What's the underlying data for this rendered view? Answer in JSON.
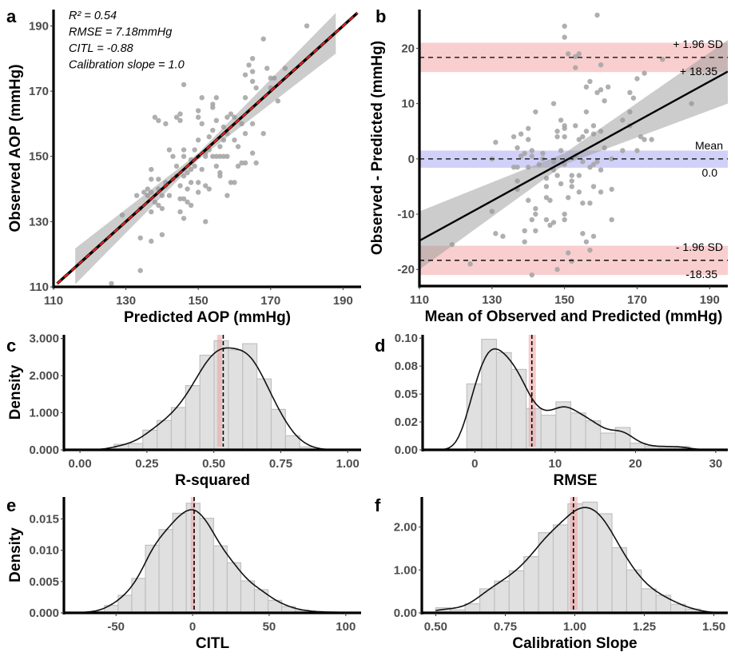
{
  "chart_data": [
    {
      "panel": "a",
      "type": "scatter",
      "xlabel": "Predicted AOP (mmHg)",
      "ylabel": "Observed AOP (mmHg)",
      "xlim": [
        110,
        195
      ],
      "ylim": [
        110,
        195
      ],
      "xticks": [
        110,
        130,
        150,
        170,
        190
      ],
      "yticks": [
        110,
        130,
        150,
        170,
        190
      ],
      "annotations": [
        "R² = 0.54",
        "RMSE = 7.18mmHg",
        "CITL = -0.88",
        "Calibration slope = 1.0"
      ],
      "fit_line": [
        [
          111,
          111
        ],
        [
          194,
          194
        ]
      ],
      "ci_band": {
        "x": [
          116,
          150,
          188
        ],
        "lower": [
          110.8,
          149,
          181.5
        ],
        "upper": [
          121.8,
          151,
          194
        ]
      },
      "points": [
        [
          126,
          111
        ],
        [
          134,
          115
        ],
        [
          134,
          125
        ],
        [
          137,
          124
        ],
        [
          140,
          126
        ],
        [
          129,
          132
        ],
        [
          133,
          138
        ],
        [
          134,
          134
        ],
        [
          136,
          140
        ],
        [
          136,
          138
        ],
        [
          137,
          143
        ],
        [
          137,
          146
        ],
        [
          137,
          133
        ],
        [
          138,
          162
        ],
        [
          139,
          161
        ],
        [
          141,
          160
        ],
        [
          138,
          136
        ],
        [
          139,
          135
        ],
        [
          140,
          134
        ],
        [
          139,
          143
        ],
        [
          141,
          142
        ],
        [
          140,
          138
        ],
        [
          142,
          138
        ],
        [
          142,
          152
        ],
        [
          144,
          162
        ],
        [
          145,
          163
        ],
        [
          145,
          161
        ],
        [
          143,
          150
        ],
        [
          144,
          144
        ],
        [
          145,
          141
        ],
        [
          145,
          137
        ],
        [
          146,
          150
        ],
        [
          146,
          152
        ],
        [
          146,
          172
        ],
        [
          145,
          133
        ],
        [
          146,
          131
        ],
        [
          146,
          137
        ],
        [
          147,
          136
        ],
        [
          148,
          135
        ],
        [
          147,
          140
        ],
        [
          147,
          145
        ],
        [
          148,
          142
        ],
        [
          148,
          146
        ],
        [
          149,
          152
        ],
        [
          149,
          147
        ],
        [
          150,
          150
        ],
        [
          150,
          155
        ],
        [
          150,
          164
        ],
        [
          150,
          162
        ],
        [
          150,
          139
        ],
        [
          150,
          142
        ],
        [
          151,
          168
        ],
        [
          151,
          146
        ],
        [
          151,
          160
        ],
        [
          152,
          150
        ],
        [
          152,
          141
        ],
        [
          152,
          130
        ],
        [
          153,
          140
        ],
        [
          153,
          156
        ],
        [
          153,
          152
        ],
        [
          154,
          158
        ],
        [
          154,
          166
        ],
        [
          154,
          165
        ],
        [
          154,
          150
        ],
        [
          155,
          147
        ],
        [
          155,
          150
        ],
        [
          155,
          168
        ],
        [
          155,
          161
        ],
        [
          156,
          150
        ],
        [
          156,
          145
        ],
        [
          156,
          144
        ],
        [
          156,
          153
        ],
        [
          157,
          150
        ],
        [
          157,
          155
        ],
        [
          157,
          159
        ],
        [
          158,
          150
        ],
        [
          158,
          138
        ],
        [
          158,
          162
        ],
        [
          159,
          163
        ],
        [
          160,
          155
        ],
        [
          160,
          162
        ],
        [
          161,
          153
        ],
        [
          161,
          147
        ],
        [
          159,
          142
        ],
        [
          160,
          142
        ],
        [
          162,
          148
        ],
        [
          163,
          148
        ],
        [
          163,
          157
        ],
        [
          163,
          168
        ],
        [
          163,
          175
        ],
        [
          164,
          178
        ],
        [
          165,
          180
        ],
        [
          165,
          176
        ],
        [
          165,
          173
        ],
        [
          166,
          171
        ],
        [
          165,
          151
        ],
        [
          165,
          160
        ],
        [
          166,
          148
        ],
        [
          168,
          157
        ],
        [
          168,
          186
        ],
        [
          169,
          177
        ],
        [
          170,
          174
        ],
        [
          171,
          174
        ],
        [
          170,
          171
        ],
        [
          172,
          167
        ],
        [
          174,
          177
        ],
        [
          180,
          190
        ],
        [
          152,
          151
        ],
        [
          148,
          149
        ],
        [
          146,
          144
        ],
        [
          144,
          147
        ],
        [
          143,
          143
        ],
        [
          141,
          141
        ],
        [
          139,
          140
        ],
        [
          135,
          139
        ],
        [
          137,
          139
        ],
        [
          162,
          160
        ],
        [
          158,
          157
        ]
      ]
    },
    {
      "panel": "b",
      "type": "scatter",
      "xlabel": "Mean of Observed and Predicted (mmHg)",
      "ylabel": "Observed - Predicted (mmHg)",
      "xlim": [
        110,
        195
      ],
      "ylim": [
        -23,
        27
      ],
      "xticks": [
        110,
        130,
        150,
        170,
        190
      ],
      "yticks": [
        -20,
        -10,
        0,
        10,
        20
      ],
      "limits": [
        {
          "name": "upper",
          "value": 18.35,
          "band": [
            15.7,
            21.0
          ],
          "label_top": "+ 1.96 SD",
          "label_bottom": "+ 18.35",
          "color": "#f4a6a6"
        },
        {
          "name": "mean",
          "value": 0.0,
          "band": [
            -1.6,
            1.5
          ],
          "label_top": "Mean",
          "label_bottom": "0.0",
          "color": "#a9a9f2"
        },
        {
          "name": "lower",
          "value": -18.35,
          "band": [
            -21.0,
            -15.7
          ],
          "label_top": "- 1.96 SD",
          "label_bottom": "-18.35",
          "color": "#f4a6a6"
        }
      ],
      "fit_line": [
        [
          110,
          -14.8
        ],
        [
          195,
          15.8
        ]
      ],
      "ci_band": {
        "x": [
          110,
          150,
          195
        ],
        "lower": [
          -20,
          -1,
          10
        ],
        "upper": [
          -9.5,
          1,
          21.5
        ]
      },
      "points": [
        [
          119,
          -15.5
        ],
        [
          124,
          -19
        ],
        [
          130,
          -9.5
        ],
        [
          130,
          0
        ],
        [
          131,
          3
        ],
        [
          131,
          -13.5
        ],
        [
          133,
          -14
        ],
        [
          136,
          -1.5
        ],
        [
          136,
          4
        ],
        [
          137,
          2
        ],
        [
          137,
          -4
        ],
        [
          137,
          -5.5
        ],
        [
          137,
          -1.5
        ],
        [
          138,
          4.5
        ],
        [
          138,
          0.5
        ],
        [
          139,
          1
        ],
        [
          139,
          -15
        ],
        [
          139,
          -13
        ],
        [
          140,
          -7.5
        ],
        [
          140,
          -1.5
        ],
        [
          140,
          3.5
        ],
        [
          140,
          5.5
        ],
        [
          141,
          0.5
        ],
        [
          141,
          1.5
        ],
        [
          141,
          -21
        ],
        [
          141,
          -11
        ],
        [
          142,
          -13
        ],
        [
          142,
          -10
        ],
        [
          142,
          8.5
        ],
        [
          142,
          -9
        ],
        [
          143,
          -1
        ],
        [
          144,
          1
        ],
        [
          144,
          0
        ],
        [
          145,
          -7
        ],
        [
          145,
          -3.5
        ],
        [
          145,
          -5
        ],
        [
          145,
          -11
        ],
        [
          146,
          -7.5
        ],
        [
          146,
          -12
        ],
        [
          147,
          -11.5
        ],
        [
          147,
          10
        ],
        [
          147,
          -2
        ],
        [
          148,
          5
        ],
        [
          148,
          4
        ],
        [
          148,
          -3
        ],
        [
          148,
          -20
        ],
        [
          149,
          -4.5
        ],
        [
          149,
          1.5
        ],
        [
          149,
          7
        ],
        [
          150,
          6
        ],
        [
          150,
          5.5
        ],
        [
          150,
          24
        ],
        [
          150,
          22
        ],
        [
          150,
          4
        ],
        [
          150,
          -11
        ],
        [
          150,
          -10
        ],
        [
          151,
          -7
        ],
        [
          151,
          19
        ],
        [
          151,
          -17
        ],
        [
          152,
          -18.5
        ],
        [
          152,
          -3
        ],
        [
          152,
          -4
        ],
        [
          152,
          -5
        ],
        [
          153,
          6
        ],
        [
          153,
          0.5
        ],
        [
          153,
          16.5
        ],
        [
          153,
          18.5
        ],
        [
          154,
          19
        ],
        [
          154,
          -6
        ],
        [
          154,
          -3
        ],
        [
          154,
          3.5
        ],
        [
          155,
          -8
        ],
        [
          155,
          -13.5
        ],
        [
          155,
          4
        ],
        [
          156,
          -15
        ],
        [
          156,
          5
        ],
        [
          156,
          8.5
        ],
        [
          156,
          13
        ],
        [
          157,
          -1.5
        ],
        [
          157,
          14
        ],
        [
          157,
          -16.5
        ],
        [
          157,
          -8
        ],
        [
          158,
          -14
        ],
        [
          158,
          6
        ],
        [
          158,
          4.5
        ],
        [
          158,
          -5
        ],
        [
          158,
          -1
        ],
        [
          159,
          26
        ],
        [
          159,
          12
        ],
        [
          160,
          12.5
        ],
        [
          160,
          17
        ],
        [
          160,
          5
        ],
        [
          160,
          -2
        ],
        [
          160,
          -6
        ],
        [
          161,
          10.5
        ],
        [
          161,
          2
        ],
        [
          162,
          13
        ],
        [
          163,
          0
        ],
        [
          163,
          -5.5
        ],
        [
          163,
          -11
        ],
        [
          166,
          7
        ],
        [
          166,
          1.5
        ],
        [
          168,
          12
        ],
        [
          168,
          8.5
        ],
        [
          168,
          6
        ],
        [
          169,
          11
        ],
        [
          170,
          14.5
        ],
        [
          170,
          1.5
        ],
        [
          171,
          4
        ],
        [
          172,
          15.5
        ],
        [
          172,
          3.5
        ],
        [
          174,
          3.5
        ],
        [
          177,
          18
        ],
        [
          185,
          10
        ],
        [
          159,
          -0.5
        ],
        [
          147,
          -0.5
        ],
        [
          150,
          -1
        ],
        [
          155,
          -0.5
        ]
      ]
    },
    {
      "panel": "c",
      "type": "bar",
      "xlabel": "R-squared",
      "ylabel": "Density",
      "xlim": [
        -0.06,
        1.05
      ],
      "ylim": [
        0,
        3.1
      ],
      "xticks": [
        0,
        0.25,
        0.5,
        0.75,
        1.0
      ],
      "xtick_labels": [
        "0.00",
        "0.25",
        "0.50",
        "0.75",
        "1.00"
      ],
      "yticks": [
        0,
        1,
        2,
        3
      ],
      "ytick_labels": [
        "0.000",
        "1.000",
        "2.000",
        "3.000"
      ],
      "bin_start": 0.128,
      "bin_width": 0.0533,
      "densities": [
        0.15,
        0.17,
        0.53,
        0.79,
        1.14,
        1.73,
        2.55,
        2.94,
        2.69,
        2.86,
        1.91,
        1.09,
        0.38,
        0.08
      ],
      "curve_range": [
        0,
        1
      ],
      "bandwidth": 0.045,
      "mean_line": 0.535,
      "ref_band": [
        0.512,
        0.53
      ]
    },
    {
      "panel": "d",
      "type": "bar",
      "xlabel": "RMSE",
      "ylabel": "",
      "xlim": [
        -6.5,
        31.5
      ],
      "ylim": [
        0,
        0.103
      ],
      "xticks": [
        0,
        10,
        20,
        30
      ],
      "xtick_labels": [
        "0",
        "10",
        "20",
        "30"
      ],
      "yticks": [
        0,
        0.025,
        0.05,
        0.075,
        0.1
      ],
      "ytick_labels": [
        "0.00",
        "0.02",
        "0.05",
        "0.08",
        "0.10"
      ],
      "bin_start": -1,
      "bin_width": 1.85,
      "densities": [
        0.059,
        0.099,
        0.087,
        0.072,
        0.037,
        0.031,
        0.043,
        0.033,
        0.026,
        0.015,
        0.02,
        0.006,
        0.003,
        0.003,
        0.003
      ],
      "curve_range": [
        -5,
        30
      ],
      "bandwidth": 1.3,
      "mean_line": 7.1,
      "ref_band": [
        6.7,
        7.6
      ]
    },
    {
      "panel": "e",
      "type": "bar",
      "xlabel": "CITL",
      "ylabel": "Density",
      "xlim": [
        -84,
        110
      ],
      "ylim": [
        0,
        0.0185
      ],
      "xticks": [
        -50,
        0,
        50,
        100
      ],
      "xtick_labels": [
        "-50",
        "0",
        "50",
        "100"
      ],
      "yticks": [
        0,
        0.005,
        0.01,
        0.015
      ],
      "ytick_labels": [
        "0.000",
        "0.005",
        "0.010",
        "0.015"
      ],
      "bin_start": -75.3,
      "bin_width": 8.9,
      "densities": [
        0.0001,
        0.0002,
        0.0012,
        0.0028,
        0.0055,
        0.0108,
        0.0133,
        0.0159,
        0.0175,
        0.0151,
        0.0107,
        0.008,
        0.0051,
        0.0037,
        0.002,
        0.001,
        0.0004,
        0.0002,
        0.0001,
        0.0001
      ],
      "curve_range": [
        -70,
        100
      ],
      "bandwidth": 6,
      "mean_line": 1,
      "ref_band": [
        -1.2,
        1.5
      ]
    },
    {
      "panel": "f",
      "type": "bar",
      "xlabel": "Calibration Slope",
      "ylabel": "",
      "xlim": [
        0.45,
        1.55
      ],
      "ylim": [
        0,
        2.7
      ],
      "xticks": [
        0.5,
        0.75,
        1.0,
        1.25,
        1.5
      ],
      "xtick_labels": [
        "0.50",
        "0.75",
        "1.00",
        "1.25",
        "1.50"
      ],
      "yticks": [
        0,
        1,
        2
      ],
      "ytick_labels": [
        "0.00",
        "1.00",
        "2.00"
      ],
      "bin_start": 0.5,
      "bin_width": 0.0528,
      "densities": [
        0.12,
        0.07,
        0.21,
        0.56,
        0.74,
        0.98,
        1.31,
        1.87,
        2.05,
        2.54,
        2.58,
        2.31,
        1.52,
        1.0,
        0.56,
        0.41,
        0.2,
        0.09
      ],
      "curve_range": [
        0.5,
        1.5
      ],
      "bandwidth": 0.045,
      "mean_line": 0.995,
      "ref_band": [
        0.982,
        1.01
      ]
    }
  ]
}
